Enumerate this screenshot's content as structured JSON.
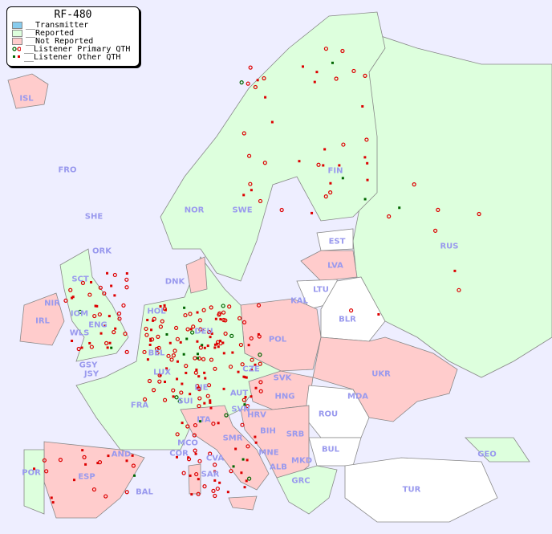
{
  "legend": {
    "title": "RF-480",
    "items": [
      {
        "label": "__Transmitter",
        "color": "#88ccee"
      },
      {
        "label": "__Reported",
        "color": "#ddffdd"
      },
      {
        "label": "__Not Reported",
        "color": "#ffcccc"
      },
      {
        "label": "__Listener Primary QTH",
        "colors": [
          "#006600",
          "#dd0000"
        ]
      },
      {
        "label": "__Listener Other QTH",
        "colors": [
          "#006600",
          "#dd0000"
        ]
      }
    ]
  },
  "colors": {
    "sea": "#eeeeff",
    "reported": "#ddffdd",
    "not_reported": "#ffcccc",
    "other": "#ffffff",
    "labels": "#9999ee"
  },
  "countries": {
    "ISL": "ISL",
    "FRO": "FRO",
    "SHE": "SHE",
    "ORK": "ORK",
    "NOR": "NOR",
    "SWE": "SWE",
    "FIN": "FIN",
    "EST": "EST",
    "RUS": "RUS",
    "LVA": "LVA",
    "LTU": "LTU",
    "KAL": "KAL",
    "BLR": "BLR",
    "DNK": "DNK",
    "HOL": "HOL",
    "DEU": "DEU",
    "POL": "POL",
    "UKR": "UKR",
    "IRL": "IRL",
    "NIR": "NIR",
    "SCT": "SCT",
    "IOM": "IOM",
    "ENG": "ENG",
    "WLS": "WLS",
    "GSY": "GSY",
    "JSY": "JSY",
    "BEL": "BEL",
    "LUX": "LUX",
    "CZE": "CZE",
    "SVK": "SVK",
    "HNG": "HNG",
    "MDA": "MDA",
    "AUT": "AUT",
    "LIE": "LIE",
    "SUI": "SUI",
    "FRA": "FRA",
    "ITA": "ITA",
    "SVN": "SVN",
    "HRV": "HRV",
    "ROU": "ROU",
    "BIH": "BIH",
    "SRB": "SRB",
    "BUL": "BUL",
    "MNE": "MNE",
    "MCO": "MCO",
    "COR": "COR",
    "AND": "AND",
    "CVA": "CVA",
    "SMR": "SMR",
    "ALB": "ALB",
    "MKD": "MKD",
    "GEO": "GEO",
    "POR": "POR",
    "ESP": "ESP",
    "SAR": "SAR",
    "BAL": "BAL",
    "GRC": "GRC",
    "TUR": "TUR"
  }
}
